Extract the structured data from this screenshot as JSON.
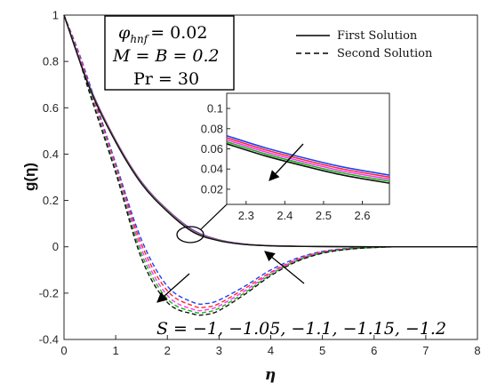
{
  "chart_data": {
    "type": "line",
    "xlabel": "η",
    "ylabel": "g(η)",
    "xlim": [
      0,
      8
    ],
    "ylim": [
      -0.4,
      1
    ],
    "xticks": [
      "0",
      "1",
      "2",
      "3",
      "4",
      "5",
      "6",
      "7",
      "8"
    ],
    "yticks": [
      "1",
      "0.8",
      "0.6",
      "0.4",
      "0.2",
      "0",
      "-0.2",
      "-0.4"
    ],
    "grid": false,
    "legend_position": "top-right",
    "legend": [
      {
        "label": "First Solution",
        "style": "solid"
      },
      {
        "label": "Second Solution",
        "style": "dashed"
      }
    ],
    "parameters": {
      "phi_symbol": "φ",
      "phi_sub": "hnf",
      "phi_value": "= 0.02",
      "mb_text": "M = B = 0.2",
      "pr_text": "Pr = 30"
    },
    "sweep_label": "S = −1, −1.05, −1.1, −1.15, −1.2",
    "S_values": [
      -1,
      -1.05,
      -1.1,
      -1.15,
      -1.2
    ],
    "series_colors": [
      "#1f3fff",
      "#ff2a2a",
      "#ff33ff",
      "#1ab31a",
      "#111111"
    ],
    "first_solution": {
      "x": [
        0,
        0.5,
        1,
        1.5,
        2,
        2.5,
        3,
        3.5,
        4,
        5,
        6,
        7,
        8
      ],
      "series": [
        {
          "S": -1,
          "values": [
            1,
            0.69,
            0.46,
            0.28,
            0.16,
            0.072,
            0.03,
            0.012,
            0.005,
            0.001,
            0,
            0,
            0
          ]
        },
        {
          "S": -1.05,
          "values": [
            1,
            0.688,
            0.458,
            0.278,
            0.158,
            0.069,
            0.029,
            0.011,
            0.005,
            0.001,
            0,
            0,
            0
          ]
        },
        {
          "S": -1.1,
          "values": [
            1,
            0.686,
            0.456,
            0.276,
            0.156,
            0.067,
            0.028,
            0.011,
            0.004,
            0.001,
            0,
            0,
            0
          ]
        },
        {
          "S": -1.15,
          "values": [
            1,
            0.684,
            0.454,
            0.274,
            0.154,
            0.065,
            0.027,
            0.01,
            0.004,
            0.001,
            0,
            0,
            0
          ]
        },
        {
          "S": -1.2,
          "values": [
            1,
            0.682,
            0.452,
            0.272,
            0.152,
            0.063,
            0.026,
            0.01,
            0.004,
            0.001,
            0,
            0,
            0
          ]
        }
      ]
    },
    "second_solution": {
      "x": [
        0,
        0.25,
        0.5,
        1,
        1.5,
        2,
        2.5,
        2.75,
        3,
        3.5,
        4,
        4.5,
        5,
        5.5,
        6,
        6.5,
        7,
        8
      ],
      "series": [
        {
          "S": -1,
          "values": [
            1,
            0.86,
            0.7,
            0.36,
            0.03,
            -0.17,
            -0.24,
            -0.245,
            -0.23,
            -0.17,
            -0.1,
            -0.05,
            -0.02,
            -0.007,
            -0.002,
            0,
            0,
            0
          ]
        },
        {
          "S": -1.05,
          "values": [
            1,
            0.855,
            0.69,
            0.35,
            0.01,
            -0.19,
            -0.255,
            -0.26,
            -0.245,
            -0.18,
            -0.11,
            -0.055,
            -0.022,
            -0.008,
            -0.002,
            0,
            0,
            0
          ]
        },
        {
          "S": -1.1,
          "values": [
            1,
            0.85,
            0.68,
            0.34,
            -0.01,
            -0.21,
            -0.27,
            -0.272,
            -0.255,
            -0.19,
            -0.115,
            -0.058,
            -0.024,
            -0.009,
            -0.003,
            0,
            0,
            0
          ]
        },
        {
          "S": -1.15,
          "values": [
            1,
            0.845,
            0.67,
            0.33,
            -0.03,
            -0.225,
            -0.28,
            -0.282,
            -0.265,
            -0.198,
            -0.12,
            -0.061,
            -0.026,
            -0.01,
            -0.003,
            0,
            0,
            0
          ]
        },
        {
          "S": -1.2,
          "values": [
            1,
            0.84,
            0.66,
            0.32,
            -0.05,
            -0.24,
            -0.29,
            -0.292,
            -0.275,
            -0.205,
            -0.125,
            -0.064,
            -0.028,
            -0.011,
            -0.003,
            0,
            0,
            0
          ]
        }
      ]
    },
    "inset": {
      "xlim": [
        2.25,
        2.67
      ],
      "ylim": [
        0.005,
        0.115
      ],
      "xticks": [
        "2.3",
        "2.4",
        "2.5",
        "2.6"
      ],
      "yticks": [
        "0.1",
        "0.08",
        "0.06",
        "0.04",
        "0.02"
      ],
      "x": [
        2.25,
        2.35,
        2.45,
        2.55,
        2.67
      ],
      "series": [
        {
          "S": -1,
          "values": [
            0.073,
            0.061,
            0.051,
            0.042,
            0.034
          ]
        },
        {
          "S": -1.05,
          "values": [
            0.071,
            0.059,
            0.049,
            0.04,
            0.032
          ]
        },
        {
          "S": -1.1,
          "values": [
            0.069,
            0.057,
            0.047,
            0.038,
            0.03
          ]
        },
        {
          "S": -1.15,
          "values": [
            0.067,
            0.055,
            0.045,
            0.036,
            0.028
          ]
        },
        {
          "S": -1.2,
          "values": [
            0.065,
            0.053,
            0.043,
            0.034,
            0.026
          ]
        }
      ]
    }
  }
}
